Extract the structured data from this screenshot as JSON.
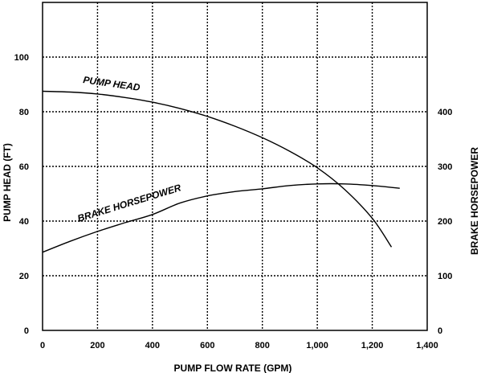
{
  "chart_data": {
    "type": "line",
    "title": "",
    "xlabel": "PUMP FLOW RATE (GPM)",
    "ylabel": "PUMP HEAD (FT)",
    "y2label": "BRAKE HORSEPOWER",
    "xlim": [
      0,
      1400
    ],
    "ylim": [
      0,
      120
    ],
    "y2lim": [
      0,
      600
    ],
    "x_ticks": [
      0,
      200,
      400,
      600,
      800,
      1000,
      1200,
      1400
    ],
    "x_tick_labels": [
      "0",
      "200",
      "400",
      "600",
      "800",
      "1,000",
      "1,200",
      "1,400"
    ],
    "y_ticks": [
      0,
      20,
      40,
      60,
      80,
      100
    ],
    "y_tick_labels": [
      "0",
      "20",
      "40",
      "60",
      "80",
      "100"
    ],
    "y2_ticks": [
      0,
      100,
      200,
      300,
      400
    ],
    "y2_tick_labels": [
      "0",
      "100",
      "200",
      "300",
      "400"
    ],
    "grid": "dotted",
    "series": [
      {
        "name": "PUMP HEAD",
        "axis": "left",
        "x": [
          0,
          100,
          200,
          300,
          400,
          500,
          600,
          700,
          800,
          900,
          1000,
          1100,
          1200,
          1270
        ],
        "y": [
          87.5,
          87.2,
          86.5,
          85.2,
          83.5,
          81.2,
          78.3,
          74.7,
          70.5,
          65.5,
          59.5,
          51.5,
          41.0,
          30.5
        ]
      },
      {
        "name": "BRAKE HORSEPOWER",
        "axis": "right",
        "x": [
          0,
          100,
          200,
          300,
          400,
          500,
          600,
          700,
          800,
          900,
          1000,
          1100,
          1200,
          1300
        ],
        "y": [
          143,
          163,
          181,
          197,
          212,
          233,
          246,
          254,
          259,
          265,
          268,
          268,
          265,
          260
        ]
      }
    ]
  }
}
